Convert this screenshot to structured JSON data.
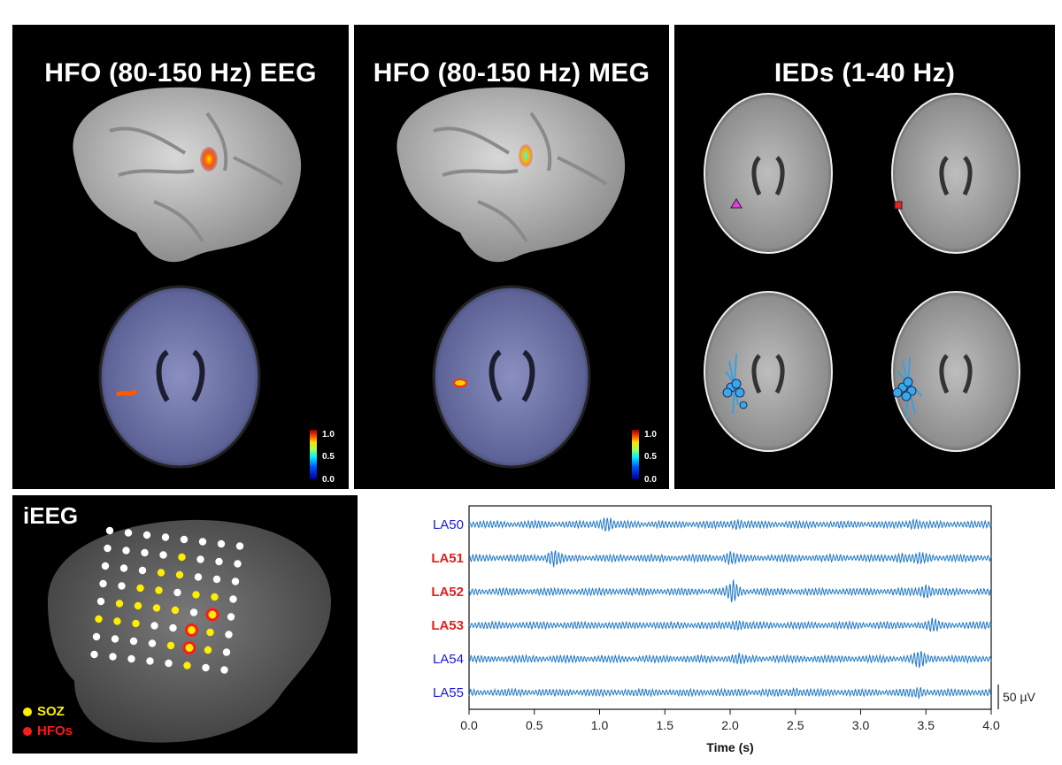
{
  "panels": {
    "eeg": {
      "title": "HFO (80-150 Hz) EEG"
    },
    "meg": {
      "title": "HFO (80-150 Hz) MEG"
    },
    "ied": {
      "title": "IEDs (1-40 Hz)"
    }
  },
  "colorbar": {
    "ticks": [
      "1.0",
      "0.5",
      "0.0"
    ]
  },
  "ieeg": {
    "title": "iEEG",
    "legend": [
      {
        "label": "SOZ",
        "color": "#ffee00"
      },
      {
        "label": "HFOs",
        "color": "#ff1a1a"
      }
    ]
  },
  "colors": {
    "channel_normal": "#1a1adb",
    "channel_hfo": "#e02020",
    "trace": "#1f78c8"
  },
  "chart_data": {
    "type": "line",
    "xlabel": "Time (s)",
    "xlim": [
      0.0,
      4.0
    ],
    "x_ticks": [
      "0.0",
      "0.5",
      "1.0",
      "1.5",
      "2.0",
      "2.5",
      "3.0",
      "3.5",
      "4.0"
    ],
    "scale_bar": "50 µV",
    "channels": [
      {
        "name": "LA50",
        "hfo": false,
        "bursts": [
          [
            1.05,
            3.2
          ],
          [
            2.05,
            1.4
          ],
          [
            3.4,
            1.6
          ]
        ]
      },
      {
        "name": "LA51",
        "hfo": true,
        "bursts": [
          [
            0.65,
            3.6
          ],
          [
            2.0,
            2.2
          ],
          [
            3.3,
            1.3
          ],
          [
            3.45,
            1.6
          ]
        ]
      },
      {
        "name": "LA52",
        "hfo": true,
        "bursts": [
          [
            2.02,
            4.2
          ],
          [
            3.5,
            3.0
          ]
        ]
      },
      {
        "name": "LA53",
        "hfo": true,
        "bursts": [
          [
            2.05,
            1.6
          ],
          [
            3.55,
            2.2
          ]
        ]
      },
      {
        "name": "LA54",
        "hfo": false,
        "bursts": [
          [
            3.45,
            3.4
          ],
          [
            2.05,
            1.2
          ]
        ]
      },
      {
        "name": "LA55",
        "hfo": false,
        "bursts": [
          [
            2.5,
            1.2
          ],
          [
            3.45,
            1.4
          ]
        ]
      }
    ]
  }
}
